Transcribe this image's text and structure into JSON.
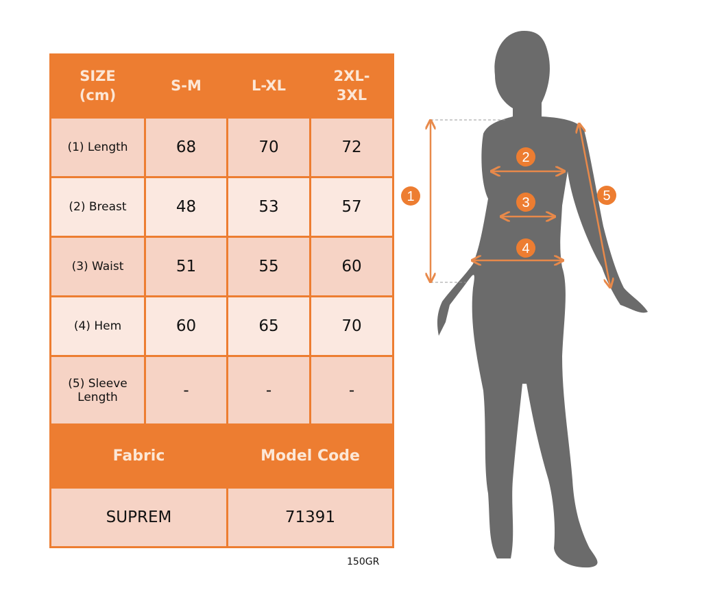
{
  "table": {
    "header": [
      "SIZE\n(cm)",
      "S-M",
      "L-XL",
      "2XL-\n3XL"
    ],
    "rows": [
      {
        "label": "(1) Length",
        "values": [
          "68",
          "70",
          "72"
        ]
      },
      {
        "label": "(2) Breast",
        "values": [
          "48",
          "53",
          "57"
        ]
      },
      {
        "label": "(3) Waist",
        "values": [
          "51",
          "55",
          "60"
        ]
      },
      {
        "label": "(4) Hem",
        "values": [
          "60",
          "65",
          "70"
        ]
      },
      {
        "label": "(5) Sleeve Length",
        "values": [
          "-",
          "-",
          "-"
        ]
      }
    ],
    "fabric_label": "Fabric",
    "model_code_label": "Model Code",
    "fabric": "SUPREM",
    "model_code": "71391"
  },
  "note": "150GR",
  "figure": {
    "markers": [
      "1",
      "2",
      "3",
      "4",
      "5"
    ],
    "accent": "#ED7D31",
    "silhouette": "#6B6B6B"
  }
}
